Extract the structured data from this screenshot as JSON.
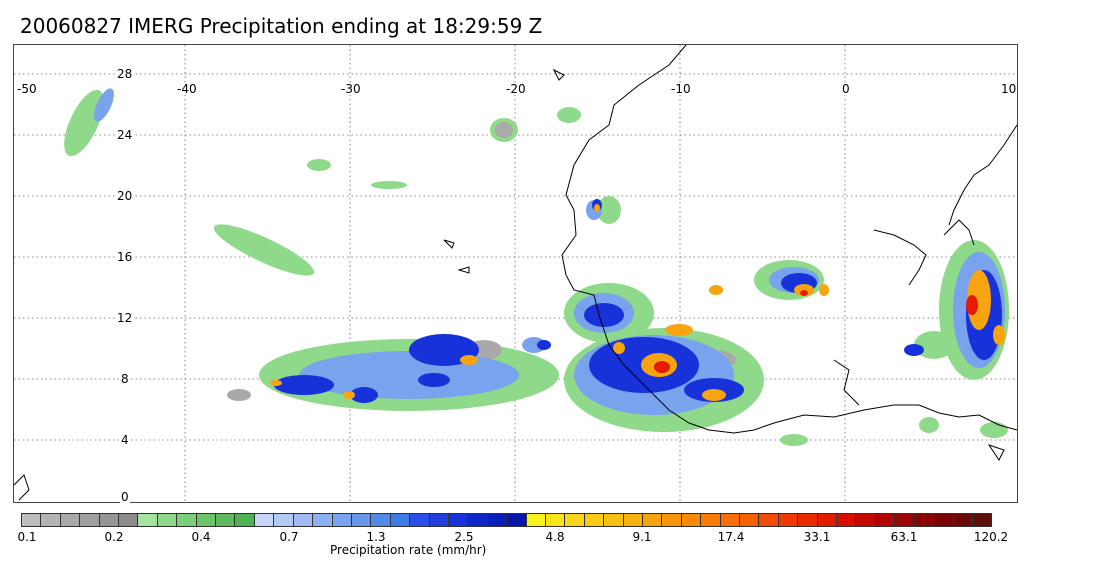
{
  "title": "20060827 IMERG Precipitation ending at 18:29:59 Z",
  "map": {
    "lon_range": [
      -50,
      10
    ],
    "lat_range": [
      -1,
      30
    ],
    "lon_labels": [
      "-50",
      "-40",
      "-30",
      "-20",
      "-10",
      "0",
      "10"
    ],
    "lat_labels": [
      "28",
      "24",
      "20",
      "16",
      "12",
      "8",
      "4",
      "0"
    ],
    "gridlines": "dotted",
    "coastline_color": "#000000"
  },
  "colorbar": {
    "label": "Precipitation rate (mm/hr)",
    "tick_labels": [
      "0.1",
      "0.2",
      "0.4",
      "0.7",
      "1.3",
      "2.5",
      "4.8",
      "9.1",
      "17.4",
      "33.1",
      "63.1",
      "120.2"
    ],
    "colors": [
      "#bdbdbd",
      "#b3b3b3",
      "#a9a9a9",
      "#9f9f9f",
      "#959595",
      "#8b8b8b",
      "#a6e3a0",
      "#8fd98a",
      "#7ccf78",
      "#6cc56a",
      "#5dbb5e",
      "#4fb152",
      "#c7d6f5",
      "#b4c9f2",
      "#a1bcf0",
      "#8db0ee",
      "#79a3ec",
      "#6696ea",
      "#5289e7",
      "#3f7be5",
      "#2a4fe6",
      "#1f3fe0",
      "#1632d8",
      "#0f27c9",
      "#0a1fbb",
      "#0616ab",
      "#f6f21c",
      "#f7e51a",
      "#f7d818",
      "#f7cb16",
      "#f8be14",
      "#f8b112",
      "#f8a310",
      "#f8960e",
      "#f8890c",
      "#f87c0a",
      "#f86e08",
      "#f86106",
      "#f24b04",
      "#ee3a03",
      "#e92a02",
      "#e51a01",
      "#d61000",
      "#c40a00",
      "#b00606",
      "#9e0404",
      "#8c0303",
      "#7a0202",
      "#6a0a0a",
      "#5c1010"
    ]
  }
}
